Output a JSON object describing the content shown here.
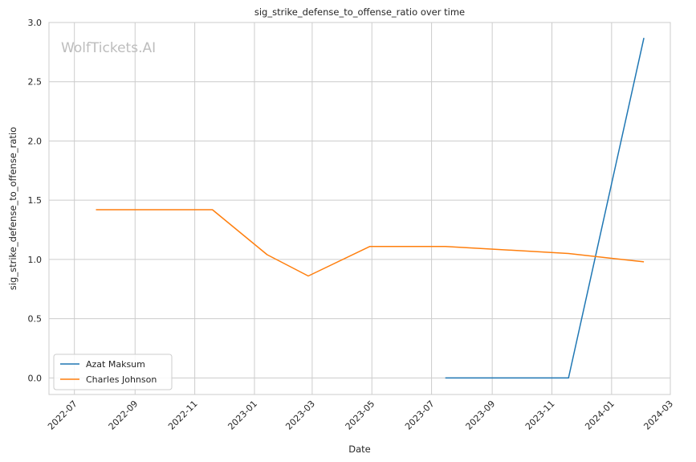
{
  "chart_data": {
    "type": "line",
    "title": "sig_strike_defense_to_offense_ratio over time",
    "xlabel": "Date",
    "ylabel": "sig_strike_defense_to_offense_ratio",
    "watermark": "WolfTickets.AI",
    "x_ticks": [
      "2022-07",
      "2022-09",
      "2022-11",
      "2023-01",
      "2023-03",
      "2023-05",
      "2023-07",
      "2023-09",
      "2023-11",
      "2024-01",
      "2024-03"
    ],
    "y_ticks": [
      "0.0",
      "0.5",
      "1.0",
      "1.5",
      "2.0",
      "2.5",
      "3.0"
    ],
    "xlim": [
      "2022-06-05",
      "2024-03-01"
    ],
    "ylim": [
      -0.14,
      3.0
    ],
    "grid": true,
    "legend_position": "lower-left",
    "series": [
      {
        "name": "Azat Maksum",
        "color": "#1f77b4",
        "x": [
          "2023-07-15",
          "2023-11-18",
          "2024-02-03"
        ],
        "y": [
          0.0,
          0.0,
          2.87
        ]
      },
      {
        "name": "Charles Johnson",
        "color": "#ff7f0e",
        "x": [
          "2022-07-23",
          "2022-11-19",
          "2023-01-14",
          "2023-02-25",
          "2023-04-29",
          "2023-07-15",
          "2023-11-18",
          "2024-02-03"
        ],
        "y": [
          1.42,
          1.42,
          1.04,
          0.86,
          1.11,
          1.11,
          1.05,
          0.98
        ]
      }
    ]
  }
}
